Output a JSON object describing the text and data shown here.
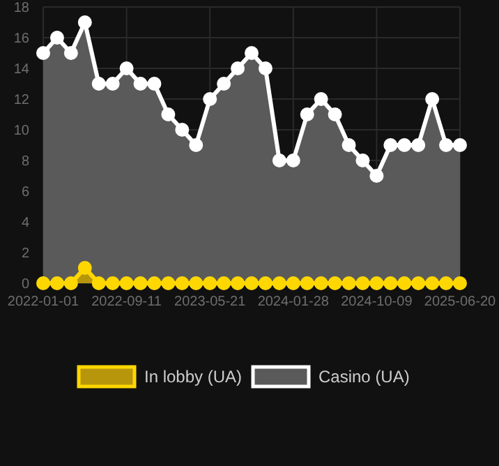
{
  "chart_data": {
    "type": "area",
    "categories": [
      "2022-01-01",
      null,
      null,
      null,
      null,
      null,
      "2022-09-11",
      null,
      null,
      null,
      null,
      null,
      "2023-05-21",
      null,
      null,
      null,
      null,
      null,
      "2024-01-28",
      null,
      null,
      null,
      null,
      null,
      "2024-10-09",
      null,
      null,
      null,
      null,
      null,
      "2025-06-20"
    ],
    "series": [
      {
        "name": "Casino (UA)",
        "color": "#ffffff",
        "values": [
          15,
          16,
          15,
          17,
          13,
          13,
          14,
          13,
          13,
          11,
          10,
          9,
          12,
          13,
          14,
          15,
          14,
          8,
          8,
          11,
          12,
          11,
          9,
          8,
          7,
          9,
          9,
          9,
          12,
          9,
          9
        ]
      },
      {
        "name": "In lobby (UA)",
        "color": "#ffd700",
        "values": [
          0,
          0,
          0,
          1,
          0,
          0,
          0,
          0,
          0,
          0,
          0,
          0,
          0,
          0,
          0,
          0,
          0,
          0,
          0,
          0,
          0,
          0,
          0,
          0,
          0,
          0,
          0,
          0,
          0,
          0,
          0
        ]
      }
    ],
    "ylim": [
      0,
      18
    ],
    "yticks": [
      0,
      2,
      4,
      6,
      8,
      10,
      12,
      14,
      16,
      18
    ],
    "grid": true,
    "legend": "bottom",
    "marker": "circle"
  }
}
